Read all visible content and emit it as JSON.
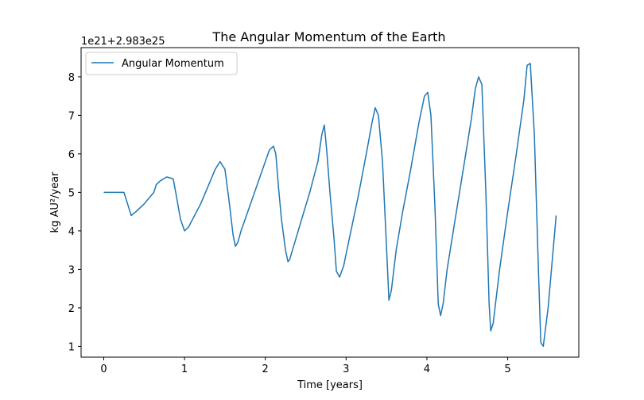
{
  "chart_data": {
    "type": "line",
    "title": "The Angular Momentum of the Earth",
    "xlabel": "Time [years]",
    "ylabel": "kg AU²/year",
    "y_offset_label": "1e21+2.983e25",
    "xlim": [
      -0.28,
      5.88
    ],
    "ylim": [
      0.72,
      8.76
    ],
    "x_ticks": [
      0,
      1,
      2,
      3,
      4,
      5
    ],
    "x_tick_labels": [
      "0",
      "1",
      "2",
      "3",
      "4",
      "5"
    ],
    "y_ticks": [
      1,
      2,
      3,
      4,
      5,
      6,
      7,
      8
    ],
    "y_tick_labels": [
      "1",
      "2",
      "3",
      "4",
      "5",
      "6",
      "7",
      "8"
    ],
    "grid": false,
    "legend_position": "top-left",
    "series": [
      {
        "name": "Angular Momentum",
        "color": "#1f77b4",
        "x": [
          0.0,
          0.15,
          0.25,
          0.31,
          0.34,
          0.4,
          0.5,
          0.62,
          0.65,
          0.7,
          0.78,
          0.86,
          0.9,
          0.95,
          1.0,
          1.05,
          1.1,
          1.2,
          1.3,
          1.38,
          1.44,
          1.5,
          1.55,
          1.6,
          1.63,
          1.66,
          1.7,
          1.8,
          1.9,
          2.0,
          2.05,
          2.1,
          2.13,
          2.16,
          2.2,
          2.25,
          2.28,
          2.3,
          2.35,
          2.45,
          2.55,
          2.65,
          2.7,
          2.73,
          2.76,
          2.8,
          2.85,
          2.88,
          2.92,
          2.97,
          3.05,
          3.15,
          3.25,
          3.32,
          3.36,
          3.4,
          3.45,
          3.5,
          3.53,
          3.56,
          3.62,
          3.7,
          3.8,
          3.9,
          3.97,
          4.01,
          4.05,
          4.1,
          4.14,
          4.17,
          4.2,
          4.25,
          4.35,
          4.45,
          4.55,
          4.6,
          4.64,
          4.68,
          4.73,
          4.77,
          4.79,
          4.82,
          4.9,
          5.0,
          5.1,
          5.2,
          5.24,
          5.28,
          5.33,
          5.38,
          5.41,
          5.44,
          5.5,
          5.6
        ],
        "y": [
          5.0,
          5.0,
          5.0,
          4.6,
          4.4,
          4.5,
          4.7,
          5.0,
          5.2,
          5.3,
          5.4,
          5.35,
          4.9,
          4.3,
          4.0,
          4.1,
          4.3,
          4.7,
          5.2,
          5.6,
          5.8,
          5.6,
          4.8,
          3.9,
          3.6,
          3.7,
          4.0,
          4.6,
          5.2,
          5.8,
          6.1,
          6.2,
          6.0,
          5.2,
          4.3,
          3.5,
          3.2,
          3.25,
          3.6,
          4.3,
          5.0,
          5.8,
          6.5,
          6.75,
          6.1,
          5.0,
          3.8,
          2.95,
          2.8,
          3.1,
          3.9,
          4.9,
          6.0,
          6.8,
          7.2,
          7.0,
          5.8,
          3.6,
          2.2,
          2.45,
          3.5,
          4.5,
          5.6,
          6.8,
          7.5,
          7.6,
          7.0,
          4.6,
          2.1,
          1.8,
          2.1,
          3.0,
          4.3,
          5.6,
          6.9,
          7.7,
          8.0,
          7.8,
          5.0,
          2.1,
          1.4,
          1.6,
          3.0,
          4.5,
          5.9,
          7.4,
          8.3,
          8.35,
          6.5,
          3.0,
          1.1,
          1.0,
          2.0,
          4.4
        ]
      }
    ]
  }
}
